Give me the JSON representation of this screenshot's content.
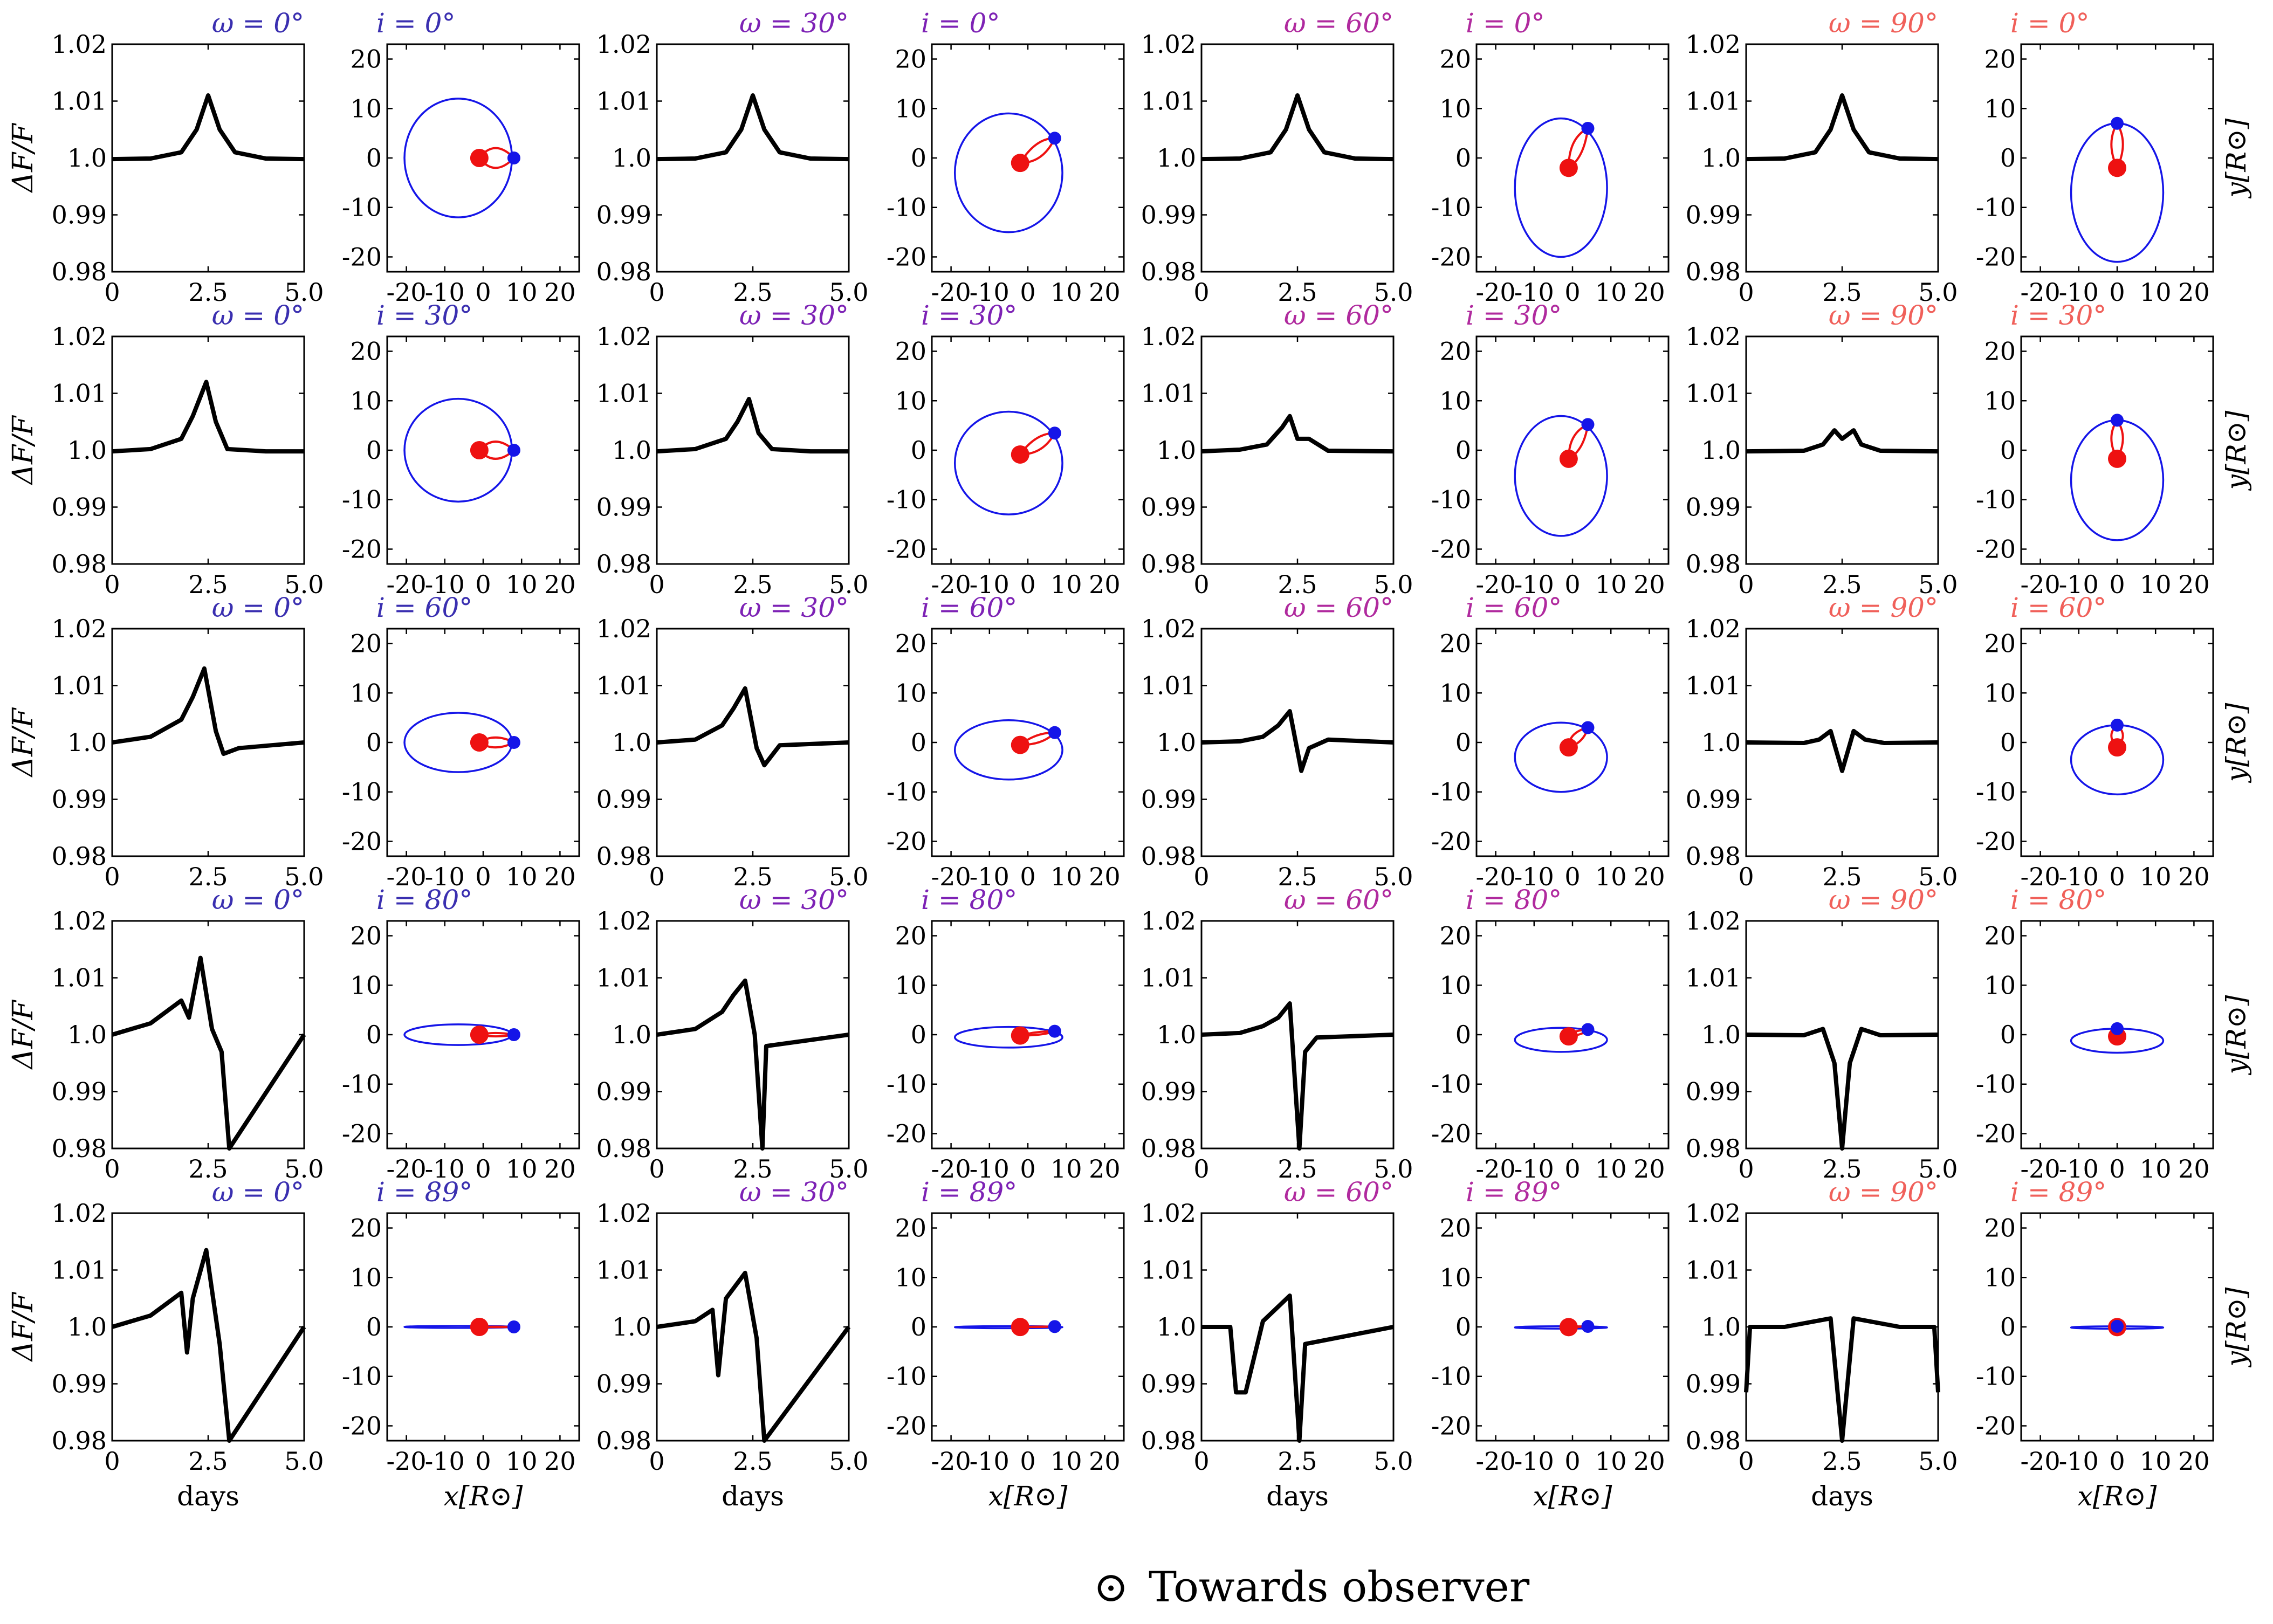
{
  "figure": {
    "footer_symbol": "⊙",
    "footer_text": "Towards observer",
    "ylabel_lc": "ΔF/F",
    "xlabel_lc": "days",
    "xlabel_orbit": "x[R⊙]",
    "ylabel_orbit": "y[R⊙]",
    "colors": {
      "curve": "#000000",
      "orbit_blue": "#1515e8",
      "orbit_red": "#ee1111",
      "omega_label": [
        "#3a2fb0",
        "#7d22b5",
        "#b02a9e",
        "#f0605a"
      ]
    },
    "omega_labels": [
      "ω = 0°",
      "ω = 30°",
      "ω = 60°",
      "ω = 90°"
    ],
    "inclination_labels": [
      "i = 0°",
      "i = 30°",
      "i = 60°",
      "i = 80°",
      "i = 89°"
    ]
  },
  "chart_data": [
    {
      "type": "line",
      "panel": "light-curve",
      "xlabel": "days",
      "ylabel": "ΔF/F",
      "xlim": [
        0,
        5.0
      ],
      "ylim": [
        0.98,
        1.02
      ],
      "xticks": [
        "0",
        "2.5",
        "5.0"
      ],
      "yticks": [
        "0.98",
        "0.99",
        "1.0",
        "1.01",
        "1.02"
      ],
      "grid_rows_inclination_deg": [
        0,
        30,
        60,
        80,
        89
      ],
      "grid_cols_omega_deg": [
        0,
        30,
        60,
        90
      ],
      "peak_day_approx": 2.5,
      "series": [
        {
          "name": "ω=0°, i=0°",
          "x": [
            0,
            1,
            1.8,
            2.2,
            2.5,
            2.8,
            3.2,
            4,
            5
          ],
          "y": [
            0.9998,
            0.9999,
            1.001,
            1.005,
            1.011,
            1.005,
            1.001,
            0.9999,
            0.9998
          ]
        },
        {
          "name": "ω=30°, i=0°",
          "x": [
            0,
            1,
            1.8,
            2.2,
            2.5,
            2.8,
            3.2,
            4,
            5
          ],
          "y": [
            0.9998,
            0.9999,
            1.001,
            1.005,
            1.011,
            1.005,
            1.001,
            0.9999,
            0.9998
          ]
        },
        {
          "name": "ω=60°, i=0°",
          "x": [
            0,
            1,
            1.8,
            2.2,
            2.5,
            2.8,
            3.2,
            4,
            5
          ],
          "y": [
            0.9998,
            0.9999,
            1.001,
            1.005,
            1.011,
            1.005,
            1.001,
            0.9999,
            0.9998
          ]
        },
        {
          "name": "ω=90°, i=0°",
          "x": [
            0,
            1,
            1.8,
            2.2,
            2.5,
            2.8,
            3.2,
            4,
            5
          ],
          "y": [
            0.9998,
            0.9999,
            1.001,
            1.005,
            1.011,
            1.005,
            1.001,
            0.9999,
            0.9998
          ]
        },
        {
          "name": "ω=0°, i=30°",
          "x": [
            0,
            1,
            1.8,
            2.1,
            2.45,
            2.7,
            3.0,
            4,
            5
          ],
          "y": [
            0.9998,
            1.0002,
            1.002,
            1.006,
            1.012,
            1.005,
            1.0002,
            0.9998,
            0.9998
          ]
        },
        {
          "name": "ω=30°, i=30°",
          "x": [
            0,
            1,
            1.8,
            2.1,
            2.4,
            2.65,
            3.0,
            4,
            5
          ],
          "y": [
            0.9998,
            1.0002,
            1.002,
            1.005,
            1.009,
            1.003,
            1.0002,
            0.9998,
            0.9998
          ]
        },
        {
          "name": "ω=60°, i=30°",
          "x": [
            0,
            1,
            1.7,
            2.1,
            2.3,
            2.5,
            2.8,
            3.3,
            5
          ],
          "y": [
            0.9998,
            1.0001,
            1.001,
            1.004,
            1.006,
            1.002,
            1.002,
            0.9999,
            0.9998
          ]
        },
        {
          "name": "ω=90°, i=30°",
          "x": [
            0,
            1.5,
            2.0,
            2.3,
            2.5,
            2.8,
            3.0,
            3.5,
            5
          ],
          "y": [
            0.9998,
            0.9999,
            1.001,
            1.0035,
            1.002,
            1.0035,
            1.001,
            0.9999,
            0.9998
          ]
        },
        {
          "name": "ω=0°, i=60°",
          "x": [
            0,
            1,
            1.8,
            2.1,
            2.4,
            2.7,
            2.9,
            3.3,
            5
          ],
          "y": [
            1.0,
            1.001,
            1.004,
            1.008,
            1.013,
            1.002,
            0.998,
            0.999,
            1.0
          ]
        },
        {
          "name": "ω=30°, i=60°",
          "x": [
            0,
            1,
            1.7,
            2.0,
            2.3,
            2.6,
            2.8,
            3.2,
            5
          ],
          "y": [
            1.0,
            1.0005,
            1.003,
            1.006,
            1.0095,
            0.999,
            0.996,
            0.9995,
            1.0
          ]
        },
        {
          "name": "ω=60°, i=60°",
          "x": [
            0,
            1,
            1.6,
            2.0,
            2.3,
            2.6,
            2.8,
            3.3,
            5
          ],
          "y": [
            1.0,
            1.0002,
            1.001,
            1.003,
            1.0055,
            0.995,
            0.999,
            1.0005,
            1.0
          ]
        },
        {
          "name": "ω=90°, i=60°",
          "x": [
            0,
            1.5,
            1.9,
            2.2,
            2.5,
            2.8,
            3.1,
            3.6,
            5
          ],
          "y": [
            1.0,
            0.9999,
            1.0005,
            1.002,
            0.995,
            1.002,
            1.0005,
            0.9999,
            1.0
          ]
        },
        {
          "name": "ω=0°, i=80°",
          "x": [
            0,
            1,
            1.8,
            2.0,
            2.3,
            2.6,
            2.85,
            3.05,
            5
          ],
          "y": [
            1.0,
            1.002,
            1.006,
            1.003,
            1.0135,
            1.001,
            0.997,
            0.98,
            1.0
          ]
        },
        {
          "name": "ω=30°, i=80°",
          "x": [
            0,
            1,
            1.7,
            2.0,
            2.3,
            2.55,
            2.75,
            2.85,
            5
          ],
          "y": [
            1.0,
            1.001,
            1.004,
            1.007,
            1.0095,
            1.0,
            0.98,
            0.998,
            1.0
          ]
        },
        {
          "name": "ω=60°, i=80°",
          "x": [
            0,
            1,
            1.6,
            2.0,
            2.3,
            2.55,
            2.7,
            3.0,
            5
          ],
          "y": [
            1.0,
            1.0003,
            1.0015,
            1.003,
            1.0055,
            0.98,
            0.997,
            0.9995,
            1.0
          ]
        },
        {
          "name": "ω=90°, i=80°",
          "x": [
            0,
            1.5,
            2.0,
            2.3,
            2.5,
            2.7,
            3.0,
            3.5,
            5
          ],
          "y": [
            1.0,
            0.9999,
            1.001,
            0.995,
            0.98,
            0.995,
            1.001,
            0.9999,
            1.0
          ]
        },
        {
          "name": "ω=0°, i=89°",
          "x": [
            0,
            1,
            1.8,
            1.95,
            2.1,
            2.45,
            2.8,
            3.05,
            5
          ],
          "y": [
            1.0,
            1.002,
            1.006,
            0.9955,
            1.005,
            1.0135,
            0.997,
            0.98,
            1.0
          ]
        },
        {
          "name": "ω=30°, i=89°",
          "x": [
            0,
            1,
            1.45,
            1.6,
            1.8,
            2.3,
            2.6,
            2.8,
            5
          ],
          "y": [
            1.0,
            1.001,
            1.003,
            0.9915,
            1.005,
            1.0095,
            0.998,
            0.98,
            1.0
          ]
        },
        {
          "name": "ω=60°, i=89°",
          "x": [
            0,
            0.75,
            0.9,
            1.15,
            1.6,
            2.3,
            2.55,
            2.7,
            5
          ],
          "y": [
            1.0,
            1.0,
            0.9885,
            0.9885,
            1.001,
            1.0055,
            0.98,
            0.997,
            1.0
          ]
        },
        {
          "name": "ω=90°, i=89°",
          "x": [
            0,
            0.1,
            1.0,
            2.2,
            2.5,
            2.8,
            4.0,
            4.9,
            5
          ],
          "y": [
            0.9885,
            1.0,
            1.0,
            1.0015,
            0.98,
            1.0015,
            1.0,
            1.0,
            0.9885
          ]
        }
      ]
    },
    {
      "type": "line",
      "panel": "orbit-projection",
      "xlabel": "x[R⊙]",
      "ylabel": "y[R⊙]",
      "xticks_omega_0_30": [
        "-20",
        "-10",
        "0",
        "10",
        "20"
      ],
      "xticks_omega_60_90": [
        "-20",
        "-10",
        "0",
        "10",
        "20"
      ],
      "ylim_rows": [
        [
          -23,
          23
        ],
        [
          -23,
          23
        ],
        [
          -23,
          23
        ],
        [
          -23,
          23
        ],
        [
          -23,
          23
        ]
      ],
      "yticks": [
        "-20",
        "-10",
        "0",
        "10",
        "20"
      ],
      "orbits": [
        {
          "omega": 0,
          "blue_orbit_center": [
            -6.5,
            0
          ],
          "blue_orbit_radii": [
            14,
            12
          ],
          "blue_dot": [
            8,
            0
          ],
          "red_dot": [
            -1,
            0
          ],
          "red_loop": [
            [
              -1,
              0
            ],
            [
              3,
              4
            ],
            [
              8,
              0
            ],
            [
              3,
              -4
            ]
          ]
        },
        {
          "omega": 30,
          "blue_orbit_center": [
            -5,
            -3
          ],
          "blue_orbit_radii": [
            14,
            12
          ],
          "blue_dot": [
            7,
            4
          ],
          "red_dot": [
            -2,
            -1
          ],
          "red_loop": [
            [
              -2,
              -1
            ],
            [
              2,
              4
            ],
            [
              7,
              4
            ],
            [
              4,
              -1
            ]
          ]
        },
        {
          "omega": 60,
          "blue_orbit_center": [
            -3,
            -6
          ],
          "blue_orbit_radii": [
            12,
            14
          ],
          "blue_dot": [
            4,
            6
          ],
          "red_dot": [
            -1,
            -2
          ],
          "red_loop": [
            [
              -1,
              -2
            ],
            [
              -1,
              4
            ],
            [
              4,
              6
            ],
            [
              3,
              0
            ]
          ]
        },
        {
          "omega": 90,
          "blue_orbit_center": [
            0,
            -7
          ],
          "blue_orbit_radii": [
            12,
            14
          ],
          "blue_dot": [
            0,
            7
          ],
          "red_dot": [
            0,
            -2
          ],
          "red_loop": [
            [
              0,
              -2
            ],
            [
              -3,
              3
            ],
            [
              0,
              7
            ],
            [
              3,
              3
            ]
          ]
        }
      ]
    }
  ]
}
